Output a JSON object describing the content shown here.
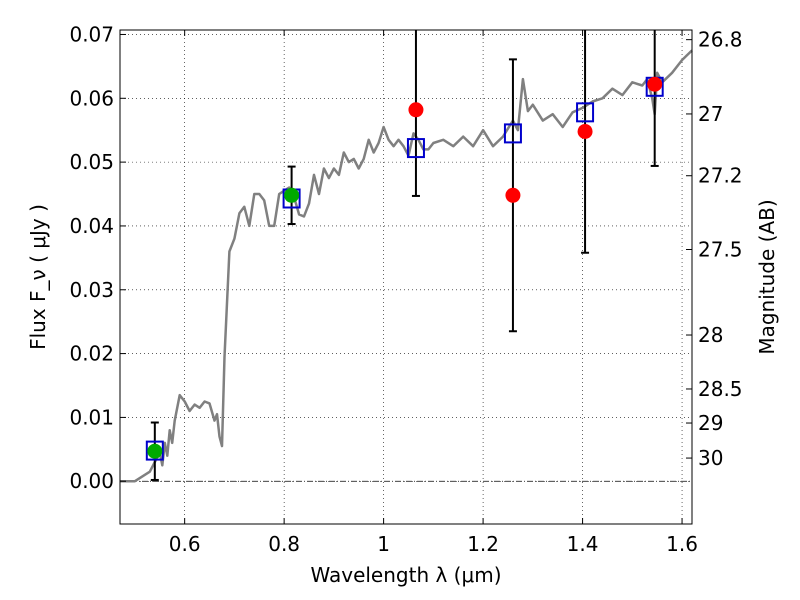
{
  "chart_data": {
    "type": "scatter",
    "xlabel": "Wavelength  λ (μm)",
    "ylabel": "Flux  F_ν  ( μJy )",
    "ylabel_right": "Magnitude (AB)",
    "xlim": [
      0.47,
      1.62
    ],
    "ylim": [
      -0.0067,
      0.0707
    ],
    "x_ticks": [
      {
        "v": 0.6,
        "label": "0.6"
      },
      {
        "v": 0.8,
        "label": "0.8"
      },
      {
        "v": 1.0,
        "label": "1"
      },
      {
        "v": 1.2,
        "label": "1.2"
      },
      {
        "v": 1.4,
        "label": "1.4"
      },
      {
        "v": 1.6,
        "label": "1.6"
      }
    ],
    "y_ticks": [
      {
        "v": 0.0,
        "label": "0.00"
      },
      {
        "v": 0.01,
        "label": "0.01"
      },
      {
        "v": 0.02,
        "label": "0.02"
      },
      {
        "v": 0.03,
        "label": "0.03"
      },
      {
        "v": 0.04,
        "label": "0.04"
      },
      {
        "v": 0.05,
        "label": "0.05"
      },
      {
        "v": 0.06,
        "label": "0.06"
      },
      {
        "v": 0.07,
        "label": "0.07"
      }
    ],
    "mag_ticks": [
      {
        "mag": 26.8,
        "label": "26.8"
      },
      {
        "mag": 27.0,
        "label": "27"
      },
      {
        "mag": 27.2,
        "label": "27.2"
      },
      {
        "mag": 27.5,
        "label": "27.5"
      },
      {
        "mag": 28.0,
        "label": "28"
      },
      {
        "mag": 28.5,
        "label": "28.5"
      },
      {
        "mag": 29.0,
        "label": "29"
      },
      {
        "mag": 30.0,
        "label": "30"
      }
    ],
    "grid": true,
    "colors": {
      "sed": "#808080",
      "model": "#0000cc",
      "green": "#00aa00",
      "red": "#ff0000",
      "error": "#000000",
      "zero_line": "#000000"
    },
    "sed_curve": {
      "x": [
        0.47,
        0.5,
        0.53,
        0.55,
        0.555,
        0.56,
        0.565,
        0.57,
        0.575,
        0.58,
        0.59,
        0.6,
        0.61,
        0.62,
        0.63,
        0.64,
        0.65,
        0.66,
        0.665,
        0.67,
        0.675,
        0.68,
        0.69,
        0.7,
        0.71,
        0.72,
        0.73,
        0.74,
        0.75,
        0.76,
        0.77,
        0.78,
        0.79,
        0.8,
        0.81,
        0.82,
        0.83,
        0.84,
        0.85,
        0.86,
        0.87,
        0.88,
        0.89,
        0.9,
        0.91,
        0.92,
        0.93,
        0.94,
        0.95,
        0.96,
        0.97,
        0.98,
        0.99,
        1.0,
        1.01,
        1.02,
        1.03,
        1.04,
        1.05,
        1.06,
        1.07,
        1.08,
        1.09,
        1.1,
        1.12,
        1.14,
        1.16,
        1.18,
        1.2,
        1.22,
        1.24,
        1.26,
        1.27,
        1.28,
        1.29,
        1.3,
        1.32,
        1.34,
        1.36,
        1.38,
        1.4,
        1.42,
        1.44,
        1.46,
        1.48,
        1.5,
        1.52,
        1.53,
        1.54,
        1.545,
        1.55,
        1.56,
        1.58,
        1.6,
        1.62
      ],
      "y": [
        0.0,
        0.0,
        0.0015,
        0.0045,
        0.0025,
        0.006,
        0.004,
        0.008,
        0.006,
        0.0095,
        0.0135,
        0.0125,
        0.011,
        0.012,
        0.0115,
        0.0125,
        0.0122,
        0.0095,
        0.0105,
        0.007,
        0.0055,
        0.0195,
        0.036,
        0.038,
        0.042,
        0.043,
        0.04,
        0.045,
        0.045,
        0.044,
        0.04,
        0.04,
        0.045,
        0.0455,
        0.046,
        0.0445,
        0.0418,
        0.0415,
        0.0435,
        0.048,
        0.045,
        0.049,
        0.0475,
        0.049,
        0.048,
        0.0515,
        0.05,
        0.0505,
        0.049,
        0.0505,
        0.0535,
        0.0515,
        0.053,
        0.0555,
        0.0535,
        0.0525,
        0.0535,
        0.0525,
        0.051,
        0.0545,
        0.0535,
        0.052,
        0.052,
        0.053,
        0.0535,
        0.0525,
        0.054,
        0.0525,
        0.055,
        0.0525,
        0.054,
        0.0565,
        0.055,
        0.063,
        0.058,
        0.059,
        0.0565,
        0.0575,
        0.0555,
        0.0578,
        0.0585,
        0.0595,
        0.06,
        0.0615,
        0.0605,
        0.0625,
        0.062,
        0.063,
        0.06,
        0.0575,
        0.064,
        0.0625,
        0.064,
        0.066,
        0.0675
      ]
    },
    "model_points": [
      {
        "x": 0.54,
        "y": 0.0048
      },
      {
        "x": 0.815,
        "y": 0.0443
      },
      {
        "x": 1.065,
        "y": 0.0522
      },
      {
        "x": 1.26,
        "y": 0.0545
      },
      {
        "x": 1.405,
        "y": 0.0578
      },
      {
        "x": 1.545,
        "y": 0.0618
      }
    ],
    "detections": [
      {
        "x": 0.54,
        "y": 0.0047,
        "err": 0.0045
      },
      {
        "x": 0.815,
        "y": 0.0448,
        "err": 0.0045
      }
    ],
    "red_points": [
      {
        "x": 1.065,
        "y": 0.0582,
        "err": 0.0135
      },
      {
        "x": 1.26,
        "y": 0.0448,
        "err": 0.0213
      },
      {
        "x": 1.405,
        "y": 0.0548,
        "err": 0.019
      },
      {
        "x": 1.545,
        "y": 0.0622,
        "err": 0.0128
      }
    ]
  }
}
